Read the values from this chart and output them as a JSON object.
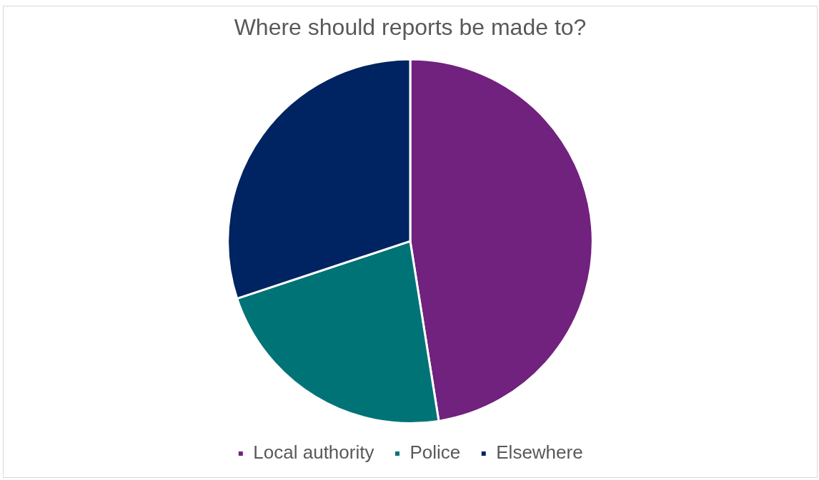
{
  "chart_data": {
    "type": "pie",
    "title": "Where should reports be made to?",
    "categories": [
      "Local authority",
      "Police",
      "Elsewhere"
    ],
    "values": [
      47.5,
      22.4,
      30.1
    ],
    "colors": [
      "#71217e",
      "#007377",
      "#002361"
    ],
    "legend": "bottom"
  }
}
